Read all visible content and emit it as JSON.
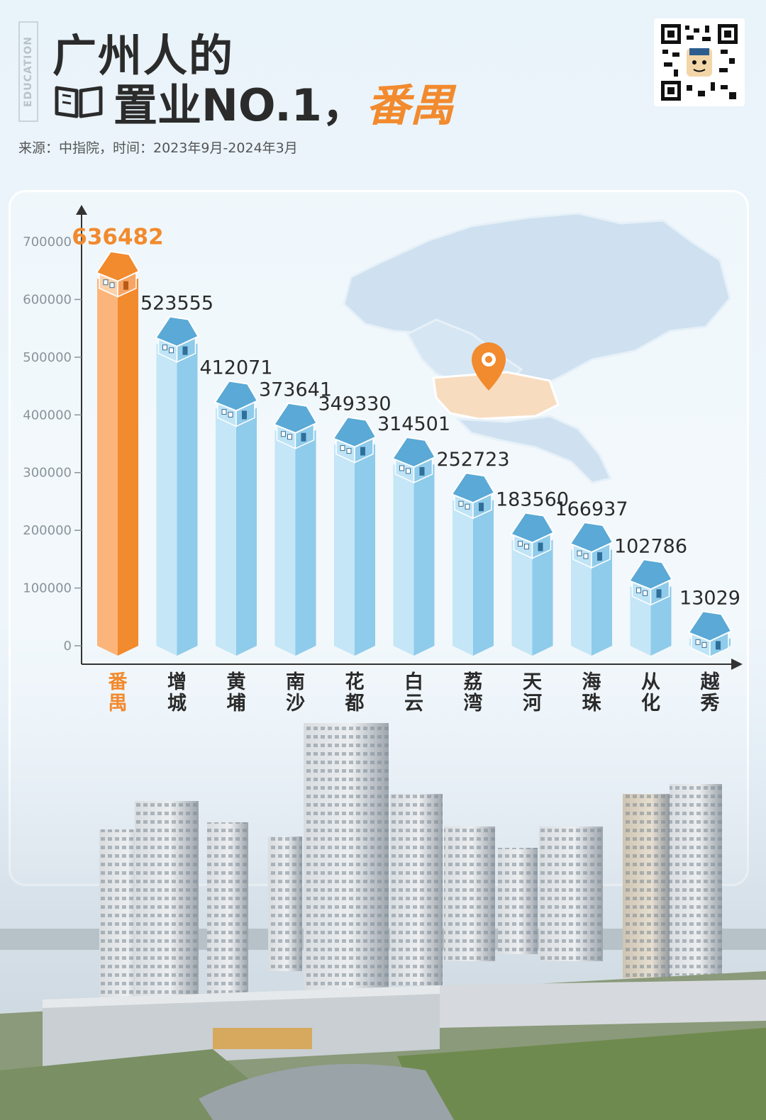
{
  "header": {
    "side_tag": "EDUCATION",
    "title_line1": "广州人的",
    "title_line2_prefix": "置业NO.1，",
    "title_line2_highlight": "番禺",
    "source": "来源：中指院，时间：2023年9月-2024年3月"
  },
  "colors": {
    "highlight": "#f28a2e",
    "bar": "#8fcbea",
    "bar_dark": "#5aa9d6",
    "axis": "#333333"
  },
  "chart_data": {
    "type": "bar",
    "title": "",
    "xlabel": "",
    "ylabel": "",
    "ylim": [
      0,
      700000
    ],
    "yticks": [
      0,
      100000,
      200000,
      300000,
      400000,
      500000,
      600000,
      700000
    ],
    "categories": [
      "番禺",
      "增城",
      "黄埔",
      "南沙",
      "花都",
      "白云",
      "荔湾",
      "天河",
      "海珠",
      "从化",
      "越秀"
    ],
    "values": [
      636482,
      523555,
      412071,
      373641,
      349330,
      314501,
      252723,
      183560,
      166937,
      102786,
      13029
    ],
    "highlight_index": 0,
    "grid": false,
    "bar_decoration": "house-icon"
  }
}
